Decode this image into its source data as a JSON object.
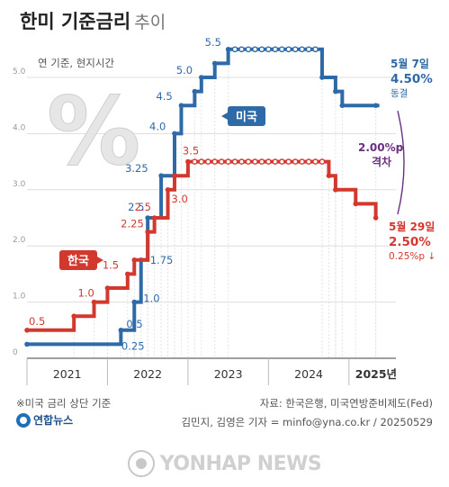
{
  "header": {
    "title": "한미 기준금리",
    "subtitle": "추이"
  },
  "unit_note": "연 기준, 현지시간",
  "footnote": "※미국 금리 상단 기준",
  "source": "자료: 한국은행, 미국연방준비제도(Fed)",
  "credit": "김민지, 김영은 기자 = minfo@yna.co.kr / 20250529",
  "logo": {
    "text": "연합뉴스",
    "icon": "yonhap-circle-icon"
  },
  "watermark": "YONHAP NEWS",
  "colors": {
    "us": "#2f6aa8",
    "korea": "#d3382f",
    "gap": "#6a2f7f",
    "grid": "#dddddd"
  },
  "chart_data": {
    "type": "line",
    "step": true,
    "title": "한미 기준금리 추이",
    "ylabel": "",
    "xlabel": "",
    "ylim": [
      0,
      5.0
    ],
    "y_ticks": [
      "0",
      "1.0",
      "2.0",
      "3.0",
      "4.0",
      "5.0"
    ],
    "x_years": [
      "2021",
      "2022",
      "2023",
      "2024",
      "2025년"
    ],
    "grid": true,
    "series": [
      {
        "name": "미국",
        "values": [
          {
            "date": "2021-01",
            "value": 0.25
          },
          {
            "date": "2022-03",
            "value": 0.5
          },
          {
            "date": "2022-05",
            "value": 1.0
          },
          {
            "date": "2022-06",
            "value": 1.75
          },
          {
            "date": "2022-07",
            "value": 2.5
          },
          {
            "date": "2022-09",
            "value": 3.25
          },
          {
            "date": "2022-11",
            "value": 4.0
          },
          {
            "date": "2022-12",
            "value": 4.5
          },
          {
            "date": "2023-02",
            "value": 4.75
          },
          {
            "date": "2023-03",
            "value": 5.0
          },
          {
            "date": "2023-05",
            "value": 5.25
          },
          {
            "date": "2023-07",
            "value": 5.5
          },
          {
            "date": "2024-09",
            "value": 5.0
          },
          {
            "date": "2024-11",
            "value": 4.75
          },
          {
            "date": "2024-12",
            "value": 4.5
          },
          {
            "date": "2025-05",
            "value": 4.5
          }
        ]
      },
      {
        "name": "한국",
        "values": [
          {
            "date": "2021-01",
            "value": 0.5
          },
          {
            "date": "2021-08",
            "value": 0.75
          },
          {
            "date": "2021-11",
            "value": 1.0
          },
          {
            "date": "2022-01",
            "value": 1.25
          },
          {
            "date": "2022-04",
            "value": 1.5
          },
          {
            "date": "2022-05",
            "value": 1.75
          },
          {
            "date": "2022-07",
            "value": 2.25
          },
          {
            "date": "2022-08",
            "value": 2.5
          },
          {
            "date": "2022-10",
            "value": 3.0
          },
          {
            "date": "2022-11",
            "value": 3.25
          },
          {
            "date": "2023-01",
            "value": 3.5
          },
          {
            "date": "2024-10",
            "value": 3.25
          },
          {
            "date": "2024-11",
            "value": 3.0
          },
          {
            "date": "2025-02",
            "value": 2.75
          },
          {
            "date": "2025-05",
            "value": 2.5
          }
        ]
      }
    ],
    "value_labels": {
      "미국": [
        "0.25",
        "0.5",
        "1.0",
        "1.75",
        "2.5",
        "3.25",
        "4.0",
        "4.5",
        "5.0",
        "5.5"
      ],
      "한국": [
        "0.5",
        "1.0",
        "1.5",
        "2.25",
        "2.5",
        "3.0",
        "3.5"
      ]
    },
    "annotations": {
      "us_end_date": "5월 7일",
      "us_end_value": "4.50%",
      "us_end_note": "동결",
      "kr_end_date": "5월 29일",
      "kr_end_value": "2.50%",
      "kr_end_note": "0.25%p ↓",
      "gap_value": "2.00%p",
      "gap_label": "격차",
      "us_badge": "미국",
      "kr_badge": "한국"
    },
    "decoration_symbol": "%"
  }
}
